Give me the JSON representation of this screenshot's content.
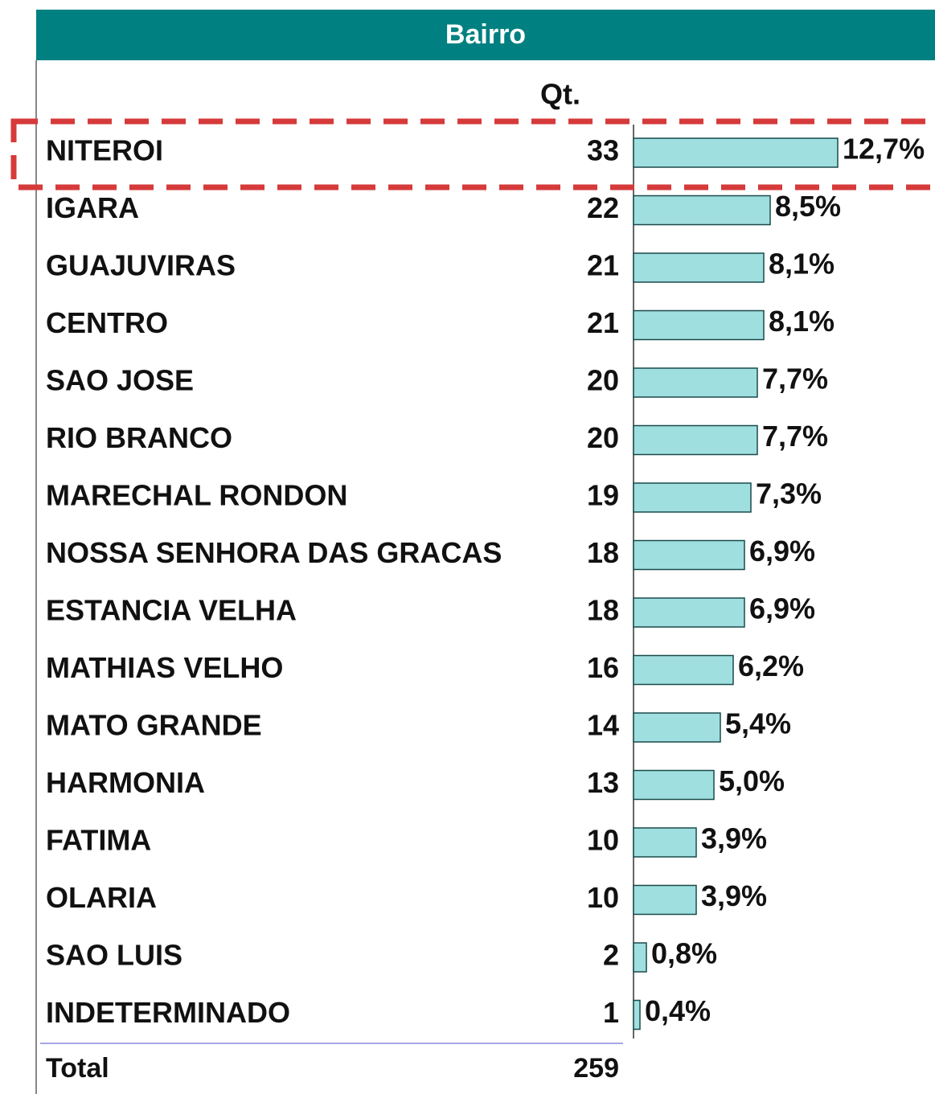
{
  "chart_data": {
    "type": "bar",
    "title": "Bairro",
    "column_label": "Qt.",
    "categories": [
      "NITEROI",
      "IGARA",
      "GUAJUVIRAS",
      "CENTRO",
      "SAO JOSE",
      "RIO BRANCO",
      "MARECHAL RONDON",
      "NOSSA SENHORA DAS GRACAS",
      "ESTANCIA VELHA",
      "MATHIAS VELHO",
      "MATO GRANDE",
      "HARMONIA",
      "FATIMA",
      "OLARIA",
      "SAO LUIS",
      "INDETERMINADO"
    ],
    "counts": [
      33,
      22,
      21,
      21,
      20,
      20,
      19,
      18,
      18,
      16,
      14,
      13,
      10,
      10,
      2,
      1
    ],
    "values": [
      12.7,
      8.5,
      8.1,
      8.1,
      7.7,
      7.7,
      7.3,
      6.9,
      6.9,
      6.2,
      5.4,
      5.0,
      3.9,
      3.9,
      0.8,
      0.4
    ],
    "value_labels": [
      "12,7%",
      "8,5%",
      "8,1%",
      "8,1%",
      "7,7%",
      "7,7%",
      "7,3%",
      "6,9%",
      "6,9%",
      "6,2%",
      "5,4%",
      "5,0%",
      "3,9%",
      "3,9%",
      "0,8%",
      "0,4%"
    ],
    "total_label": "Total",
    "total": 259,
    "color": "#a0dfe0"
  }
}
